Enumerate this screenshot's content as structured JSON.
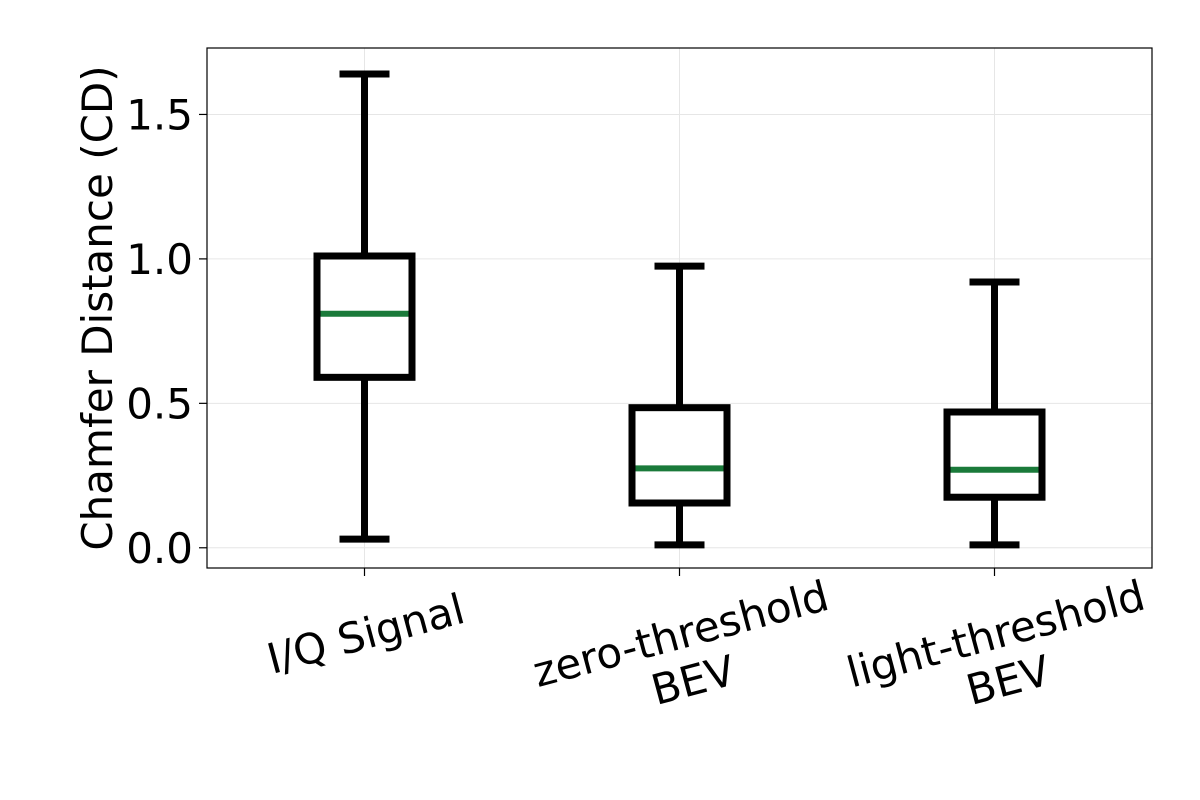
{
  "chart_data": {
    "type": "box",
    "title": "",
    "xlabel": "",
    "ylabel": "Chamfer Distance (CD)",
    "ylim": [
      -0.07,
      1.73
    ],
    "yticks": [
      0.0,
      0.5,
      1.0,
      1.5
    ],
    "ytick_labels": [
      "0.0",
      "0.5",
      "1.0",
      "1.5"
    ],
    "grid": true,
    "categories": [
      [
        "I/Q Signal"
      ],
      [
        "zero-threshold",
        "BEV"
      ],
      [
        "light-threshold",
        "BEV"
      ]
    ],
    "series": [
      {
        "boxes": [
          {
            "whislo": 0.03,
            "q1": 0.59,
            "med": 0.81,
            "q3": 1.01,
            "whishi": 1.64
          },
          {
            "whislo": 0.01,
            "q1": 0.155,
            "med": 0.275,
            "q3": 0.485,
            "whishi": 0.975
          },
          {
            "whislo": 0.01,
            "q1": 0.175,
            "med": 0.27,
            "q3": 0.47,
            "whishi": 0.92
          }
        ]
      }
    ],
    "colors": {
      "box": "#000000",
      "median": "#1a7a3a",
      "grid": "#e6e6e6",
      "axes": "#000000"
    }
  }
}
